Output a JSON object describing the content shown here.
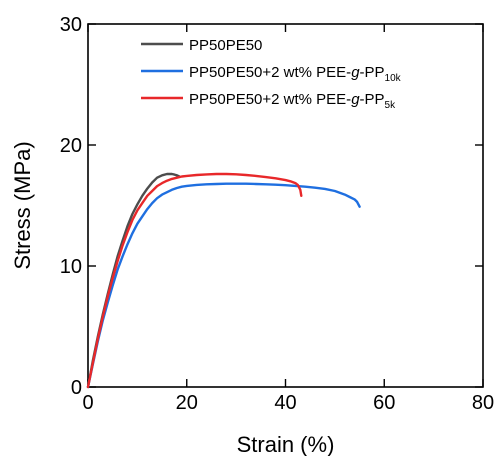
{
  "chart_data": {
    "type": "line",
    "xlabel": "Strain (%)",
    "ylabel": "Stress (MPa)",
    "xlim": [
      0,
      80
    ],
    "ylim": [
      0,
      30
    ],
    "xticks": [
      "0",
      "20",
      "40",
      "60",
      "80"
    ],
    "yticks": [
      "0",
      "10",
      "20",
      "30"
    ],
    "grid": false,
    "legend_position": "top-right",
    "series": [
      {
        "name": "PP50PE50",
        "color": "#4d4d4d",
        "x": [
          0,
          1,
          2,
          3,
          4,
          5,
          6,
          7,
          8,
          9,
          10,
          11,
          12,
          13,
          14,
          15,
          16,
          17,
          17.5,
          18,
          18.5
        ],
        "y": [
          0,
          2.2,
          4.2,
          6.0,
          7.7,
          9.3,
          10.8,
          12.1,
          13.3,
          14.3,
          15.1,
          15.8,
          16.4,
          16.9,
          17.3,
          17.5,
          17.6,
          17.6,
          17.55,
          17.5,
          17.4
        ]
      },
      {
        "name": "PP50PE50+2 wt% PEE-",
        "name_italic": "g",
        "name_suffix": "-PP",
        "name_subscript": "10k",
        "color": "#1f6fe0",
        "x": [
          0,
          1,
          2,
          3,
          4,
          5,
          6,
          7,
          8,
          9,
          10,
          11,
          12,
          13,
          14,
          15,
          16,
          17,
          18,
          19,
          20,
          22,
          24,
          26,
          28,
          30,
          32,
          34,
          36,
          38,
          40,
          42,
          44,
          46,
          48,
          50,
          52,
          53,
          54,
          54.5,
          55
        ],
        "y": [
          0,
          1.9,
          3.8,
          5.5,
          7.0,
          8.4,
          9.7,
          10.8,
          11.8,
          12.7,
          13.5,
          14.1,
          14.7,
          15.2,
          15.6,
          15.9,
          16.1,
          16.3,
          16.45,
          16.55,
          16.62,
          16.7,
          16.75,
          16.78,
          16.8,
          16.8,
          16.8,
          16.78,
          16.75,
          16.72,
          16.68,
          16.62,
          16.55,
          16.47,
          16.37,
          16.2,
          15.9,
          15.7,
          15.5,
          15.3,
          14.9
        ]
      },
      {
        "name": "PP50PE50+2 wt% PEE-",
        "name_italic": "g",
        "name_suffix": "-PP",
        "name_subscript": "5k",
        "color": "#e8282a",
        "x": [
          0,
          1,
          2,
          3,
          4,
          5,
          6,
          7,
          8,
          9,
          10,
          11,
          12,
          13,
          14,
          15,
          16,
          17,
          18,
          19,
          20,
          22,
          24,
          26,
          28,
          30,
          32,
          34,
          36,
          38,
          40,
          41,
          42,
          42.5,
          43,
          43.2
        ],
        "y": [
          0,
          2.0,
          4.0,
          5.8,
          7.5,
          9.0,
          10.4,
          11.7,
          12.8,
          13.8,
          14.6,
          15.2,
          15.8,
          16.2,
          16.6,
          16.85,
          17.05,
          17.2,
          17.3,
          17.4,
          17.45,
          17.52,
          17.57,
          17.6,
          17.6,
          17.58,
          17.52,
          17.45,
          17.35,
          17.25,
          17.1,
          17.0,
          16.85,
          16.7,
          16.3,
          15.8
        ]
      }
    ]
  }
}
